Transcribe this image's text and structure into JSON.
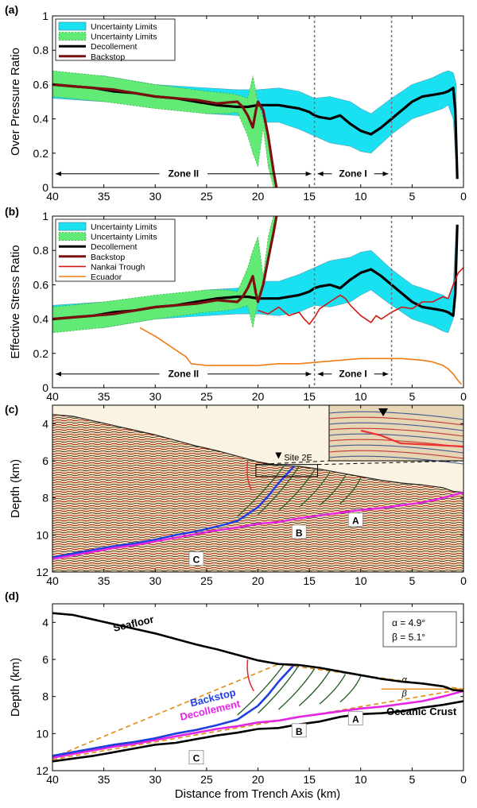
{
  "colors": {
    "uncertainty_cyan": "#19e1f2",
    "uncertainty_green": "#62ea76",
    "decollement": "#000000",
    "backstop_red": "#7b1010",
    "nankai": "#d01a12",
    "ecuador": "#ef7b12",
    "backstop_blue": "#1f3fe0",
    "decollement_magenta": "#e624e6",
    "fault_green": "#1f5a1f",
    "dash_orange": "#e08a10"
  },
  "chart_data": [
    {
      "id": "a",
      "panel_label": "(a)",
      "type": "line",
      "ylabel": "Over Pressure Ratio",
      "xlabel": "",
      "xlim": [
        40,
        0
      ],
      "ylim": [
        0,
        1
      ],
      "xticks": [
        40,
        35,
        30,
        25,
        20,
        15,
        10,
        5,
        0
      ],
      "yticks": [
        0,
        0.2,
        0.4,
        0.6,
        0.8,
        1
      ],
      "zone_lines": [
        14.5,
        7
      ],
      "zones": [
        {
          "label": "Zone II",
          "from": 40,
          "to": 14.5
        },
        {
          "label": "Zone I",
          "from": 14.5,
          "to": 7
        }
      ],
      "legend": [
        "Uncertainty Limits",
        "Uncertainty Limits",
        "Decollement",
        "Backstop"
      ],
      "series": [
        {
          "name": "Uncertainty Limits",
          "role": "band",
          "color": "cyan",
          "x": [
            40,
            35,
            30,
            25,
            22,
            20,
            18,
            16,
            14.5,
            13,
            11,
            10,
            9,
            7,
            5,
            3,
            2,
            1.5,
            1,
            0.7
          ],
          "upper": [
            0.66,
            0.65,
            0.6,
            0.58,
            0.57,
            0.57,
            0.58,
            0.56,
            0.52,
            0.53,
            0.5,
            0.46,
            0.43,
            0.52,
            0.6,
            0.64,
            0.67,
            0.68,
            0.67,
            0.6
          ],
          "lower": [
            0.52,
            0.5,
            0.47,
            0.43,
            0.42,
            0.38,
            0.38,
            0.34,
            0.3,
            0.26,
            0.24,
            0.21,
            0.2,
            0.31,
            0.4,
            0.44,
            0.46,
            0.48,
            0.4,
            0.1
          ]
        },
        {
          "name": "Uncertainty Limits",
          "role": "band",
          "color": "green",
          "x": [
            40,
            35,
            30,
            25,
            23,
            22,
            21,
            20.5,
            20,
            19.5,
            19,
            18.5,
            18.2
          ],
          "upper": [
            0.68,
            0.65,
            0.6,
            0.56,
            0.55,
            0.54,
            0.52,
            0.65,
            0.5,
            0.4,
            0.28,
            0.12,
            0.0
          ],
          "lower": [
            0.53,
            0.5,
            0.46,
            0.43,
            0.43,
            0.44,
            0.3,
            0.2,
            0.12,
            0.35,
            0.12,
            0.0,
            0.0
          ]
        },
        {
          "name": "Decollement",
          "role": "line",
          "color": "decollement",
          "x": [
            40,
            38,
            36,
            34,
            32,
            30,
            28,
            26,
            24,
            22,
            21,
            20,
            19,
            18,
            17,
            16,
            15,
            14.5,
            14,
            13,
            12,
            11,
            10,
            9,
            8,
            7,
            6,
            5,
            4,
            3,
            2,
            1.5,
            1,
            0.8,
            0.6
          ],
          "y": [
            0.6,
            0.59,
            0.58,
            0.56,
            0.55,
            0.53,
            0.52,
            0.5,
            0.48,
            0.47,
            0.47,
            0.48,
            0.48,
            0.48,
            0.47,
            0.46,
            0.44,
            0.42,
            0.41,
            0.4,
            0.42,
            0.37,
            0.33,
            0.31,
            0.35,
            0.4,
            0.45,
            0.5,
            0.53,
            0.54,
            0.55,
            0.56,
            0.58,
            0.45,
            0.05
          ]
        },
        {
          "name": "Backstop",
          "role": "line",
          "color": "backstop_red",
          "x": [
            40,
            38,
            36,
            34,
            32,
            30,
            28,
            26,
            24,
            22,
            21.5,
            21,
            20.5,
            20.2,
            20,
            19.5,
            19,
            18.5,
            18.2
          ],
          "y": [
            0.6,
            0.59,
            0.58,
            0.57,
            0.55,
            0.53,
            0.52,
            0.51,
            0.49,
            0.5,
            0.47,
            0.42,
            0.35,
            0.45,
            0.5,
            0.45,
            0.3,
            0.1,
            0.0
          ]
        }
      ]
    },
    {
      "id": "b",
      "panel_label": "(b)",
      "type": "line",
      "ylabel": "Effective Stress Ratio",
      "xlabel": "",
      "xlim": [
        40,
        0
      ],
      "ylim": [
        0,
        1
      ],
      "xticks": [
        40,
        35,
        30,
        25,
        20,
        15,
        10,
        5,
        0
      ],
      "yticks": [
        0,
        0.2,
        0.4,
        0.6,
        0.8,
        1
      ],
      "zone_lines": [
        14.5,
        7
      ],
      "zones": [
        {
          "label": "Zone II",
          "from": 40,
          "to": 14.5
        },
        {
          "label": "Zone I",
          "from": 14.5,
          "to": 7
        }
      ],
      "legend": [
        "Uncertainty Limits",
        "Uncertainty Limits",
        "Decollement",
        "Backstop",
        "Nankai Trough",
        "Ecuador"
      ],
      "series": [
        {
          "name": "Uncertainty Limits",
          "role": "band",
          "color": "cyan",
          "x": [
            40,
            35,
            30,
            25,
            22,
            20,
            18,
            16,
            14.5,
            13,
            11,
            10,
            9,
            7,
            5,
            3,
            2,
            1.5,
            1,
            0.7
          ],
          "upper": [
            0.48,
            0.5,
            0.53,
            0.57,
            0.58,
            0.62,
            0.62,
            0.66,
            0.7,
            0.74,
            0.76,
            0.79,
            0.8,
            0.69,
            0.6,
            0.56,
            0.54,
            0.52,
            0.6,
            0.95
          ],
          "lower": [
            0.34,
            0.35,
            0.4,
            0.42,
            0.43,
            0.43,
            0.42,
            0.44,
            0.48,
            0.47,
            0.5,
            0.54,
            0.57,
            0.48,
            0.4,
            0.36,
            0.33,
            0.32,
            0.4,
            0.55
          ]
        },
        {
          "name": "Uncertainty Limits",
          "role": "band",
          "color": "green",
          "x": [
            40,
            35,
            30,
            25,
            23,
            22,
            21,
            20.5,
            20,
            19.5,
            19,
            18.5,
            18.2
          ],
          "upper": [
            0.47,
            0.5,
            0.54,
            0.57,
            0.57,
            0.56,
            0.7,
            0.8,
            0.88,
            0.65,
            0.88,
            1.0,
            1.0
          ],
          "lower": [
            0.32,
            0.35,
            0.4,
            0.44,
            0.45,
            0.46,
            0.48,
            0.35,
            0.5,
            0.6,
            0.72,
            0.88,
            1.0
          ]
        },
        {
          "name": "Decollement",
          "role": "line",
          "color": "decollement",
          "x": [
            40,
            38,
            36,
            34,
            32,
            30,
            28,
            26,
            24,
            22,
            21,
            20,
            19,
            18,
            17,
            16,
            15,
            14.5,
            14,
            13,
            12,
            11,
            10,
            9,
            8,
            7,
            6,
            5,
            4,
            3,
            2,
            1.5,
            1,
            0.8,
            0.6
          ],
          "y": [
            0.4,
            0.41,
            0.42,
            0.44,
            0.45,
            0.47,
            0.48,
            0.5,
            0.52,
            0.53,
            0.53,
            0.52,
            0.52,
            0.52,
            0.53,
            0.54,
            0.56,
            0.58,
            0.59,
            0.6,
            0.58,
            0.63,
            0.67,
            0.69,
            0.65,
            0.6,
            0.55,
            0.5,
            0.47,
            0.46,
            0.45,
            0.44,
            0.42,
            0.55,
            0.95
          ]
        },
        {
          "name": "Backstop",
          "role": "line",
          "color": "backstop_red",
          "x": [
            40,
            38,
            36,
            34,
            32,
            30,
            28,
            26,
            24,
            22,
            21.5,
            21,
            20.5,
            20.2,
            20,
            19.5,
            19,
            18.5,
            18.2
          ],
          "y": [
            0.4,
            0.41,
            0.42,
            0.43,
            0.45,
            0.47,
            0.48,
            0.49,
            0.51,
            0.5,
            0.53,
            0.58,
            0.65,
            0.55,
            0.5,
            0.6,
            0.75,
            0.9,
            1.0
          ]
        },
        {
          "name": "Nankai Trough",
          "role": "line",
          "color": "nankai",
          "x": [
            20,
            19,
            18,
            17,
            16,
            15.5,
            15,
            14.5,
            14,
            13,
            12,
            11.5,
            11,
            10,
            9,
            8.5,
            8,
            7,
            6,
            5,
            4,
            3,
            2,
            1.5,
            1,
            0.5,
            0
          ],
          "y": [
            0.45,
            0.43,
            0.47,
            0.42,
            0.44,
            0.4,
            0.37,
            0.41,
            0.46,
            0.5,
            0.54,
            0.52,
            0.48,
            0.42,
            0.38,
            0.42,
            0.4,
            0.44,
            0.47,
            0.46,
            0.5,
            0.5,
            0.53,
            0.52,
            0.6,
            0.67,
            0.7
          ]
        },
        {
          "name": "Ecuador",
          "role": "line",
          "color": "ecuador",
          "x": [
            31.5,
            30,
            29,
            28,
            27,
            26.5,
            25,
            23,
            20,
            18,
            16,
            14,
            12,
            10,
            8,
            6,
            4,
            3,
            2,
            1.5,
            1,
            0.5,
            0.2
          ],
          "y": [
            0.35,
            0.3,
            0.26,
            0.22,
            0.18,
            0.14,
            0.13,
            0.13,
            0.13,
            0.14,
            0.14,
            0.15,
            0.16,
            0.17,
            0.17,
            0.17,
            0.16,
            0.15,
            0.13,
            0.11,
            0.08,
            0.04,
            0.02
          ]
        }
      ]
    },
    {
      "id": "c",
      "panel_label": "(c)",
      "type": "seismic-section",
      "ylabel": "Depth (km)",
      "xlabel": "",
      "xlim": [
        40,
        0
      ],
      "ylim": [
        12,
        3
      ],
      "xticks": [
        40,
        35,
        30,
        25,
        20,
        15,
        10,
        5,
        0
      ],
      "yticks": [
        4,
        6,
        8,
        10,
        12
      ],
      "site_label": "Site 2E",
      "site_x": 18,
      "box_labels": [
        {
          "text": "A",
          "x": 10.5,
          "y": 9.2
        },
        {
          "text": "B",
          "x": 16,
          "y": 9.85
        },
        {
          "text": "C",
          "x": 26,
          "y": 11.3
        }
      ]
    },
    {
      "id": "d",
      "panel_label": "(d)",
      "type": "cross-section",
      "ylabel": "Depth (km)",
      "xlabel": "Distance from Trench Axis (km)",
      "xlim": [
        40,
        0
      ],
      "ylim": [
        12,
        3
      ],
      "xticks": [
        40,
        35,
        30,
        25,
        20,
        15,
        10,
        5,
        0
      ],
      "yticks": [
        4,
        6,
        8,
        10,
        12
      ],
      "annotation_alpha": "α = 4.9°",
      "annotation_beta": "β = 5.1°",
      "alpha_symbol": "α",
      "beta_symbol": "β",
      "labels": {
        "seafloor": "Seafloor",
        "backstop": "Backstop",
        "decollement": "Decollement",
        "oceanic_crust": "Oceanic Crust"
      },
      "box_labels": [
        {
          "text": "A",
          "x": 10.5,
          "y": 9.2
        },
        {
          "text": "B",
          "x": 16,
          "y": 9.85
        },
        {
          "text": "C",
          "x": 26,
          "y": 11.3
        }
      ],
      "seafloor": {
        "x": [
          40,
          38,
          36,
          34,
          32,
          30,
          28,
          26,
          24,
          22,
          20,
          18,
          16,
          14,
          12,
          10,
          8,
          6,
          4,
          2,
          1,
          0
        ],
        "y": [
          3.5,
          3.6,
          3.85,
          4.1,
          4.35,
          4.6,
          4.9,
          5.2,
          5.45,
          5.75,
          6.05,
          6.25,
          6.3,
          6.45,
          6.65,
          6.85,
          7.05,
          7.2,
          7.3,
          7.45,
          7.65,
          7.7
        ]
      },
      "decollement": {
        "x": [
          40,
          38,
          36,
          34,
          32,
          30,
          28,
          26,
          24,
          22,
          20,
          18,
          16,
          14,
          12,
          10,
          8,
          6,
          4,
          2,
          0
        ],
        "y": [
          11.3,
          11.1,
          10.9,
          10.7,
          10.55,
          10.35,
          10.15,
          9.95,
          9.75,
          9.6,
          9.4,
          9.3,
          9.1,
          8.95,
          8.8,
          8.65,
          8.55,
          8.4,
          8.25,
          8.0,
          7.7
        ]
      },
      "backstop": {
        "x": [
          40,
          38,
          36,
          34,
          32,
          30,
          28,
          26,
          24,
          22,
          20,
          19,
          18,
          17,
          16.5
        ],
        "y": [
          11.2,
          11.0,
          10.8,
          10.6,
          10.45,
          10.25,
          10.0,
          9.8,
          9.55,
          9.25,
          8.5,
          7.9,
          7.2,
          6.6,
          6.3
        ]
      },
      "oceanic_crust": {
        "x": [
          40,
          38,
          36,
          34,
          32,
          30,
          28,
          26,
          24,
          22,
          20,
          18,
          16,
          14,
          12,
          10,
          8,
          6,
          4,
          2,
          0
        ],
        "y": [
          11.5,
          11.35,
          11.2,
          11.0,
          10.8,
          10.6,
          10.5,
          10.3,
          10.1,
          9.95,
          9.75,
          9.7,
          9.5,
          9.35,
          9.1,
          8.95,
          8.9,
          8.8,
          8.6,
          8.45,
          8.25
        ]
      }
    }
  ]
}
